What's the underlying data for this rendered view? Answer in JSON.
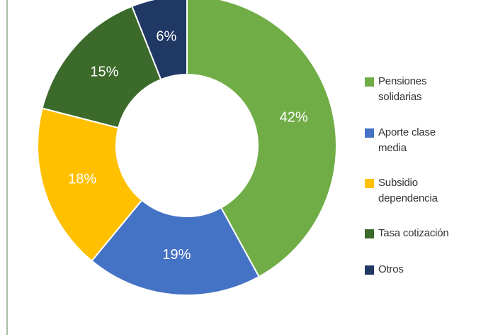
{
  "chart_data": {
    "type": "donut",
    "categories": [
      "Pensiones solidarias",
      "Aporte clase media",
      "Subsidio dependencia",
      "Tasa cotización",
      "Otros"
    ],
    "values": [
      42,
      19,
      18,
      15,
      6
    ],
    "value_labels": [
      "42%",
      "19%",
      "18%",
      "15%",
      "6%"
    ],
    "colors": [
      "#70ad47",
      "#4472c4",
      "#ffc000",
      "#3b6a2b",
      "#203864"
    ],
    "legend": "right"
  }
}
